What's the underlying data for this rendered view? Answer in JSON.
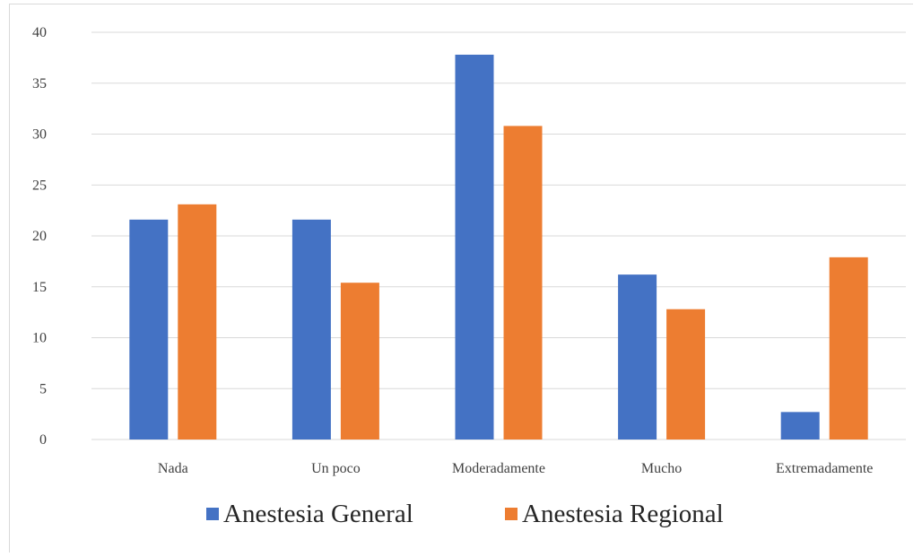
{
  "chart_data": {
    "type": "bar",
    "categories": [
      "Nada",
      "Un poco",
      "Moderadamente",
      "Mucho",
      "Extremadamente"
    ],
    "series": [
      {
        "name": "Anestesia General",
        "values": [
          21.6,
          21.6,
          37.8,
          16.2,
          2.7
        ],
        "color": "#4472C4"
      },
      {
        "name": "Anestesia Regional",
        "values": [
          23.1,
          15.4,
          30.8,
          12.8,
          17.9
        ],
        "color": "#ED7D31"
      }
    ],
    "ylim": [
      0,
      40
    ],
    "yticks": [
      0,
      5,
      10,
      15,
      20,
      25,
      30,
      35,
      40
    ],
    "grid": true,
    "legend_position": "bottom",
    "title": "",
    "xlabel": "",
    "ylabel": ""
  }
}
